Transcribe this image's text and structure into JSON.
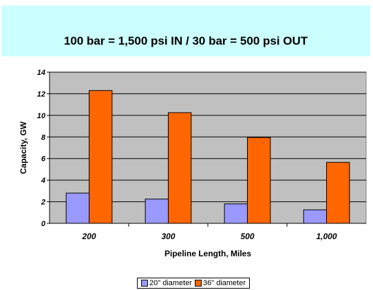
{
  "colors": {
    "title_band": "#ccffff",
    "plot_bg": "#c0c0c0",
    "series_1": "#9999ff",
    "series_2": "#ff6600",
    "grid": "#000000"
  },
  "chart_data": {
    "type": "bar",
    "title": "100 bar = 1,500 psi IN  /  30 bar = 500 psi OUT",
    "xlabel": "Pipeline Length,  Miles",
    "ylabel": "Capacity, GW",
    "categories": [
      "200",
      "300",
      "500",
      "1,000"
    ],
    "series": [
      {
        "name": "20\" diameter",
        "values": [
          2.8,
          2.25,
          1.8,
          1.25
        ]
      },
      {
        "name": "36\" diameter",
        "values": [
          12.3,
          10.25,
          7.95,
          5.65
        ]
      }
    ],
    "ylim": [
      0,
      14
    ],
    "yticks": [
      "0",
      "2",
      "4",
      "6",
      "8",
      "10",
      "12",
      "14"
    ],
    "grid": true,
    "legend_position": "bottom"
  }
}
